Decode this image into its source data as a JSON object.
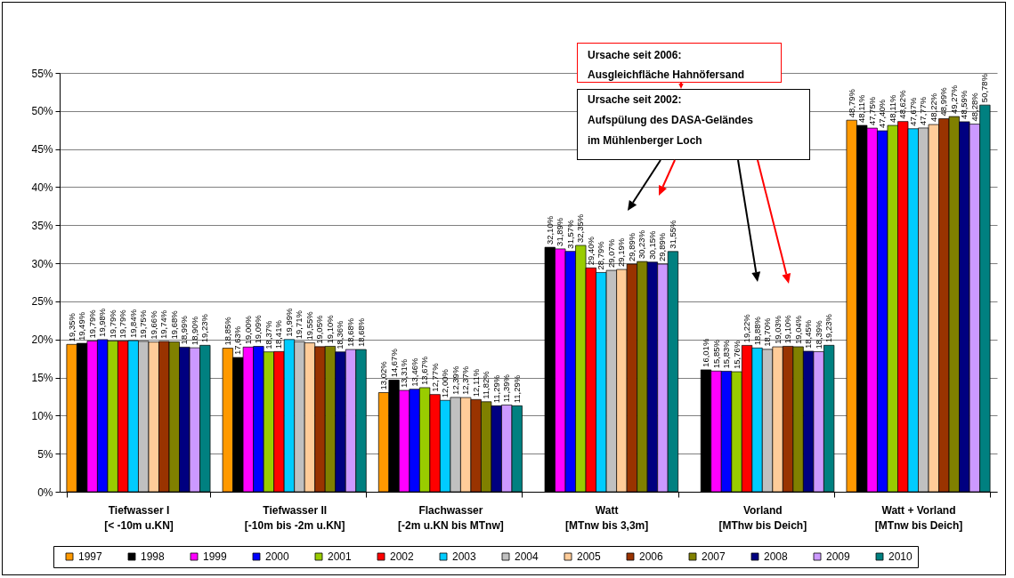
{
  "chart_data": {
    "type": "bar",
    "categories": [
      "Tiefwasser I\n[< -10m u.KN]",
      "Tiefwasser II\n[-10m bis -2m u.KN]",
      "Flachwasser\n[-2m u.KN bis MTnw]",
      "Watt\n[MTnw bis 3,3m]",
      "Vorland\n[MThw bis Deich]",
      "Watt + Vorland\n[MTnw bis Deich]"
    ],
    "series": [
      {
        "name": "1997",
        "color": "#ff9900",
        "values": [
          19.35,
          18.85,
          13.02,
          null,
          null,
          48.79
        ],
        "value_labels": [
          "19,35%",
          "18,85%",
          "13,02%",
          null,
          null,
          "48,79%"
        ]
      },
      {
        "name": "1998",
        "color": "#000000",
        "values": [
          19.49,
          17.63,
          14.67,
          32.1,
          16.01,
          48.11
        ],
        "value_labels": [
          "19,49%",
          "17,63%",
          "14,67%",
          "32,10%",
          "16,01%",
          "48,11%"
        ]
      },
      {
        "name": "1999",
        "color": "#ff00ff",
        "values": [
          19.79,
          19.0,
          13.31,
          31.89,
          15.85,
          47.75
        ],
        "value_labels": [
          "19,79%",
          "19,00%",
          "13,31%",
          "31,89%",
          "15,85%",
          "47,75%"
        ]
      },
      {
        "name": "2000",
        "color": "#0000ff",
        "values": [
          19.98,
          19.09,
          13.46,
          31.57,
          15.83,
          47.4
        ],
        "value_labels": [
          "19,98%",
          "19,09%",
          "13,46%",
          "31,57%",
          "15,83%",
          "47,40%"
        ]
      },
      {
        "name": "2001",
        "color": "#99cc00",
        "values": [
          19.79,
          18.37,
          13.67,
          32.35,
          15.76,
          48.11
        ],
        "value_labels": [
          "19,79%",
          "18,37%",
          "13,67%",
          "32,35%",
          "15,76%",
          "48,11%"
        ]
      },
      {
        "name": "2002",
        "color": "#ff0000",
        "values": [
          19.79,
          18.41,
          12.77,
          29.4,
          19.22,
          48.62
        ],
        "value_labels": [
          "19,79%",
          "18,41%",
          "12,77%",
          "29,40%",
          "19,22%",
          "48,62%"
        ]
      },
      {
        "name": "2003",
        "color": "#00ccff",
        "values": [
          19.84,
          19.99,
          12.0,
          28.79,
          18.88,
          47.67
        ],
        "value_labels": [
          "19,84%",
          "19,99%",
          "12,00%",
          "28,79%",
          "18,88%",
          "47,67%"
        ]
      },
      {
        "name": "2004",
        "color": "#c0c0c0",
        "values": [
          19.75,
          19.71,
          12.39,
          29.07,
          18.7,
          47.77
        ],
        "value_labels": [
          "19,75%",
          "19,71%",
          "12,39%",
          "29,07%",
          "18,70%",
          "47,77%"
        ]
      },
      {
        "name": "2005",
        "color": "#ffcc99",
        "values": [
          19.66,
          19.55,
          12.37,
          29.19,
          19.03,
          48.22
        ],
        "value_labels": [
          "19,66%",
          "19,55%",
          "12,37%",
          "29,19%",
          "19,03%",
          "48,22%"
        ]
      },
      {
        "name": "2006",
        "color": "#993300",
        "values": [
          19.74,
          19.05,
          12.11,
          29.89,
          19.1,
          48.99
        ],
        "value_labels": [
          "19,74%",
          "19,05%",
          "12,11%",
          "29,89%",
          "19,10%",
          "48,99%"
        ]
      },
      {
        "name": "2007",
        "color": "#808000",
        "values": [
          19.68,
          19.1,
          11.82,
          30.23,
          19.04,
          49.27
        ],
        "value_labels": [
          "19,68%",
          "19,10%",
          "11,82%",
          "30,23%",
          "19,04%",
          "49,27%"
        ]
      },
      {
        "name": "2008",
        "color": "#000080",
        "values": [
          18.99,
          18.36,
          11.29,
          30.15,
          18.45,
          48.59
        ],
        "value_labels": [
          "18,99%",
          "18,36%",
          "11,29%",
          "30,15%",
          "18,45%",
          "48,59%"
        ]
      },
      {
        "name": "2009",
        "color": "#cc99ff",
        "values": [
          18.9,
          18.68,
          11.39,
          29.89,
          18.39,
          48.28
        ],
        "value_labels": [
          "18,90%",
          "18,68%",
          "11,39%",
          "29,89%",
          "18,39%",
          "48,28%"
        ]
      },
      {
        "name": "2010",
        "color": "#008080",
        "values": [
          19.23,
          18.68,
          11.29,
          31.55,
          19.23,
          50.78
        ],
        "value_labels": [
          "19,23%",
          "18,68%",
          "11,29%",
          "31,55%",
          "19,23%",
          "50,78%"
        ]
      }
    ],
    "ylim": [
      0,
      55
    ],
    "yticks": [
      {
        "value": 0,
        "label": "0%"
      },
      {
        "value": 5,
        "label": "5%"
      },
      {
        "value": 10,
        "label": "10%"
      },
      {
        "value": 15,
        "label": "15%"
      },
      {
        "value": 20,
        "label": "20%"
      },
      {
        "value": 25,
        "label": "25%"
      },
      {
        "value": 30,
        "label": "30%"
      },
      {
        "value": 35,
        "label": "35%"
      },
      {
        "value": 40,
        "label": "40%"
      },
      {
        "value": 45,
        "label": "45%"
      },
      {
        "value": 50,
        "label": "50%"
      },
      {
        "value": 55,
        "label": "55%"
      }
    ],
    "grid": "y",
    "legend": "bottom",
    "annotations": [
      "Ursache seit 2006:\nAusgleichfläche Hahnöfersand",
      "Ursache seit 2002:\nAufspülung des DASA-Geländes\nim Mühlenberger Loch"
    ]
  }
}
